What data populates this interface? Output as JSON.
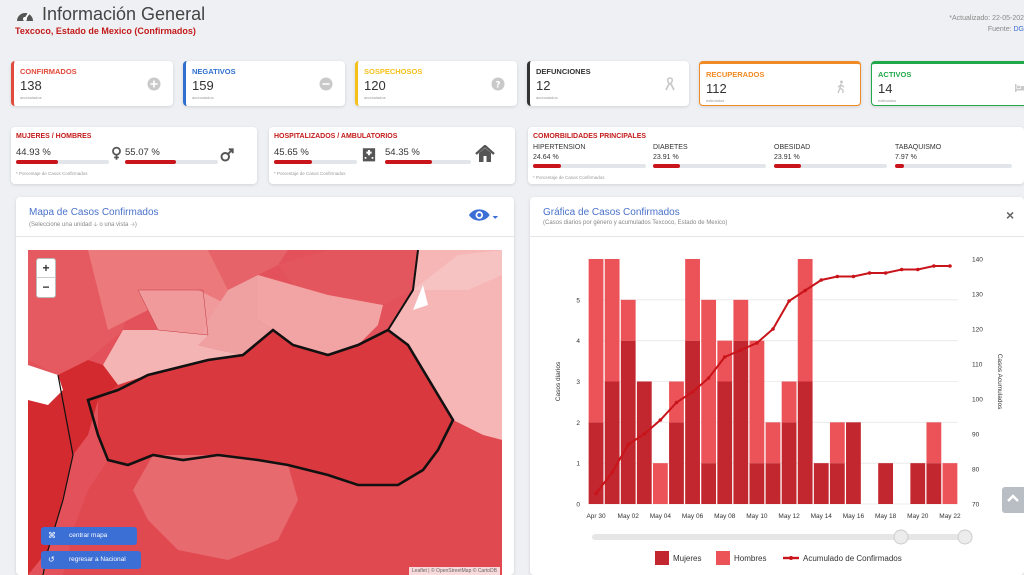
{
  "header": {
    "title": "Información General",
    "subtitle": "Texcoco, Estado de Mexico (Confirmados)",
    "updated": "*Actualizado: 22-05-202",
    "source_label": "Fuente: ",
    "source_link": "DG"
  },
  "stats": [
    {
      "label": "CONFIRMADOS",
      "value": "138",
      "sub": "acumulados",
      "color": "#e04b3b",
      "icon": "plus-circle-icon"
    },
    {
      "label": "NEGATIVOS",
      "value": "159",
      "sub": "acumulados",
      "color": "#2f6fd0",
      "icon": "minus-circle-icon"
    },
    {
      "label": "SOSPECHOSOS",
      "value": "120",
      "sub": "acumulados",
      "color": "#f5c01a",
      "icon": "question-circle-icon"
    },
    {
      "label": "DEFUNCIONES",
      "value": "12",
      "sub": "acumulados",
      "color": "#333333",
      "icon": "ribbon-icon"
    },
    {
      "label": "RECUPERADOS",
      "value": "112",
      "sub": "estimados",
      "color": "#f08a24",
      "icon": "walking-icon"
    },
    {
      "label": "ACTIVOS",
      "value": "14",
      "sub": "estimados",
      "color": "#21a84a",
      "icon": "bed-icon"
    }
  ],
  "gender": {
    "label": "MUJERES / HOMBRES",
    "women_pct": "44.93 %",
    "men_pct": "55.07 %",
    "women_value": 44.93,
    "men_value": 55.07,
    "note": "* Porcentaje de Casos Confirmados"
  },
  "hospital": {
    "label": "HOSPITALIZADOS / AMBULATORIOS",
    "hosp_pct": "45.65 %",
    "amb_pct": "54.35 %",
    "hosp_value": 45.65,
    "amb_value": 54.35,
    "note": "* Porcentaje de Casos Confirmados"
  },
  "comorbidities": {
    "label": "COMORBILIDADES PRINCIPALES",
    "note": "* Porcentaje de Casos Confirmados",
    "items": [
      {
        "name": "HIPERTENSION",
        "pct": "24.64 %",
        "value": 24.64
      },
      {
        "name": "DIABETES",
        "pct": "23.91 %",
        "value": 23.91
      },
      {
        "name": "OBESIDAD",
        "pct": "23.91 %",
        "value": 23.91
      },
      {
        "name": "TABAQUISMO",
        "pct": "7.97 %",
        "value": 7.97
      }
    ]
  },
  "map_panel": {
    "title": "Mapa de Casos Confirmados",
    "subtitle": "(Seleccione una unidad 🡣 o una vista 🡢)",
    "zoom_in": "+",
    "zoom_out": "−",
    "center_button": "centrar mapa",
    "national_button": "regresar a Nacional",
    "attribution": "Leaflet | © OpenStreetMap © CartoDB"
  },
  "chart_panel": {
    "title": "Gráfica de Casos Confirmados",
    "subtitle": "(Casos diarios por género y acumulados Texcoco, Estado de Mexico)",
    "close": "×"
  },
  "chart_data": {
    "type": "bar",
    "x": [
      "Apr 30",
      "May 01",
      "May 02",
      "May 03",
      "May 04",
      "May 05",
      "May 06",
      "May 07",
      "May 08",
      "May 09",
      "May 10",
      "May 11",
      "May 12",
      "May 13",
      "May 14",
      "May 15",
      "May 16",
      "May 17",
      "May 18",
      "May 19",
      "May 20",
      "May 21",
      "May 22"
    ],
    "x_tick_labels": [
      "Apr 30",
      "May 02",
      "May 04",
      "May 06",
      "May 08",
      "May 10",
      "May 12",
      "May 14",
      "May 16",
      "May 18",
      "May 20",
      "May 22"
    ],
    "series": [
      {
        "name": "Mujeres",
        "type": "bar",
        "color": "#c2262e",
        "values": [
          2,
          3,
          4,
          3,
          0,
          2,
          4,
          1,
          3,
          4,
          1,
          1,
          2,
          3,
          1,
          1,
          2,
          0,
          1,
          0,
          1,
          1,
          0
        ]
      },
      {
        "name": "Hombres",
        "type": "bar",
        "color": "#ec5358",
        "values": [
          4,
          3,
          1,
          0,
          1,
          1,
          2,
          4,
          1,
          1,
          3,
          1,
          1,
          3,
          0,
          1,
          0,
          0,
          0,
          0,
          0,
          1,
          1
        ]
      },
      {
        "name": "Acumulado de Confirmados",
        "type": "line",
        "color": "#c8141a",
        "values": [
          73,
          79,
          87,
          90,
          94,
          99,
          102,
          106,
          112,
          114,
          116,
          120,
          128,
          131,
          134,
          135,
          135,
          136,
          136,
          137,
          137,
          138,
          138
        ]
      }
    ],
    "ylabel_left": "Casos diarios",
    "ylabel_right": "Casos Acumulados",
    "ylim_left": [
      0,
      6
    ],
    "yticks_left": [
      0,
      1,
      2,
      3,
      4,
      5
    ],
    "ylim_right": [
      70,
      140
    ],
    "yticks_right": [
      70,
      80,
      90,
      100,
      110,
      120,
      130,
      140
    ],
    "legend": [
      "Mujeres",
      "Hombres",
      "Acumulado de Confirmados"
    ],
    "legend_position": "bottom"
  }
}
